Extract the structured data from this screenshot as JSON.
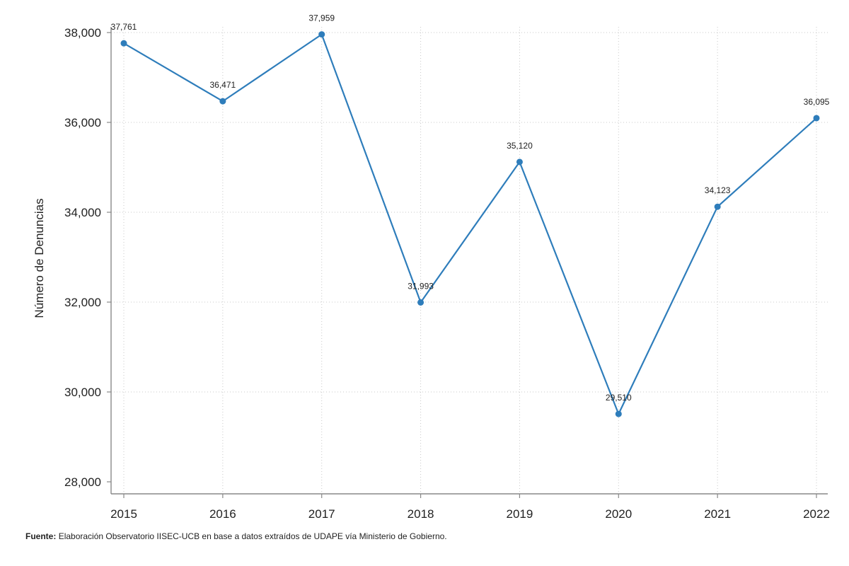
{
  "chart_data": {
    "type": "line",
    "categories": [
      "2015",
      "2016",
      "2017",
      "2018",
      "2019",
      "2020",
      "2021",
      "2022"
    ],
    "series": [
      {
        "values": [
          37761,
          36471,
          37959,
          31993,
          35120,
          29510,
          34123,
          36095
        ]
      }
    ],
    "data_labels": [
      "37,761",
      "36,471",
      "37,959",
      "31,993",
      "35,120",
      "29,510",
      "34,123",
      "36,095"
    ],
    "ylabel": "Número de Denuncias",
    "xlabel": "",
    "ylim": [
      28000,
      38000
    ],
    "yticks": [
      28000,
      30000,
      32000,
      34000,
      36000,
      38000
    ],
    "ytick_labels": [
      "28,000",
      "30,000",
      "32,000",
      "34,000",
      "36,000",
      "38,000"
    ],
    "grid": "dotted-both",
    "line_color": "#2e7dbb"
  },
  "source": {
    "label": "Fuente:",
    "text": "Elaboración Observatorio IISEC-UCB en base a datos extraídos de UDAPE vía Ministerio de Gobierno."
  }
}
